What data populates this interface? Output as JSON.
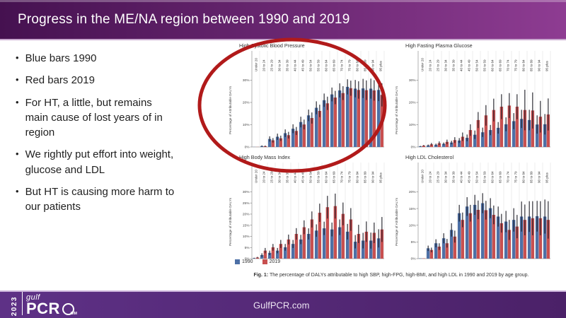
{
  "slide": {
    "title": "Progress in the ME/NA region between 1990 and 2019",
    "bullets": [
      "Blue bars 1990",
      "Red bars 2019",
      "For HT, a little, but remains main cause of lost years of in region",
      "We rightly put effort into weight, glucose and LDL",
      "But HT is causing more harm to our patients"
    ],
    "footer": {
      "url_text": "GulfPCR.com",
      "logo": {
        "year": "2023",
        "brand_top": "gulf",
        "brand_main": "PCR",
        "brand_sub": "GIM"
      }
    },
    "colors": {
      "header_grad_start": "#451150",
      "header_grad_end": "#8e3c92",
      "header_bottom_line": "#c9a8cf",
      "footer_grad_start": "#5e3186",
      "footer_grad_end": "#4b2168",
      "footer_top_line": "#cdb5dc",
      "bar_blue": "#4d70a6",
      "bar_red": "#c85050",
      "error_bar": "#1b1b24",
      "annotation_red": "#b11a1a"
    }
  },
  "figure": {
    "legend": [
      {
        "label": "1990",
        "color": "#4d70a6"
      },
      {
        "label": "2019",
        "color": "#c85050"
      }
    ],
    "caption_prefix": "Fig. 1:",
    "caption_text": "The percentage of DALYs attributable to high SBP, high-FPG, high-BMI, and high LDL in 1990 and 2019 by age group."
  },
  "chart_data": [
    {
      "id": "high_systolic_blood_pressure",
      "type": "bar",
      "title": "High Systolic Blood Pressure",
      "ylabel": "Percentage of Attributable DALYs",
      "ylim": [
        0,
        33
      ],
      "yticks": [
        0,
        10,
        20,
        30
      ],
      "grid": "vertical",
      "categories": [
        "Under 20",
        "20 to 24",
        "25 to 29",
        "30 to 34",
        "35 to 39",
        "40 to 44",
        "45 to 49",
        "50 to 54",
        "55 to 59",
        "60 to 64",
        "65 to 69",
        "70 to 74",
        "75 to 79",
        "80 to 84",
        "85 to 89",
        "90 to 94",
        "95 plus"
      ],
      "series": [
        {
          "name": "1990",
          "values": [
            0.05,
            0.4,
            3.6,
            4.6,
            6.2,
            8.2,
            11.2,
            14.2,
            17.6,
            21.0,
            23.6,
            25.4,
            27.0,
            26.2,
            26.3,
            26.2,
            25.6
          ],
          "err": [
            0.05,
            0.3,
            1.2,
            1.4,
            1.7,
            2.0,
            2.4,
            2.6,
            2.9,
            3.0,
            3.1,
            3.2,
            3.4,
            3.9,
            4.3,
            4.5,
            5.0
          ]
        },
        {
          "name": "2019",
          "values": [
            0.05,
            0.35,
            3.0,
            3.9,
            5.3,
            7.2,
            10.1,
            13.0,
            16.2,
            19.6,
            22.2,
            24.2,
            26.4,
            25.6,
            25.5,
            25.4,
            23.4
          ],
          "err": [
            0.05,
            0.3,
            1.0,
            1.2,
            1.5,
            1.8,
            2.2,
            2.5,
            2.8,
            3.0,
            3.0,
            3.1,
            3.4,
            3.9,
            4.4,
            4.6,
            5.2
          ]
        }
      ]
    },
    {
      "id": "high_fasting_plasma_glucose",
      "type": "bar",
      "title": "High Fasting Plasma Glucose",
      "ylabel": "Percentage of Attributable DALYs",
      "ylim": [
        0,
        33
      ],
      "yticks": [
        0,
        10,
        20,
        30
      ],
      "grid": "vertical",
      "categories": [
        "Under 20",
        "20 to 24",
        "25 to 29",
        "30 to 34",
        "35 to 39",
        "40 to 44",
        "45 to 49",
        "50 to 54",
        "55 to 59",
        "60 to 64",
        "65 to 69",
        "70 to 74",
        "75 to 79",
        "80 to 84",
        "85 to 89",
        "90 to 94",
        "95 plus"
      ],
      "series": [
        {
          "name": "1990",
          "values": [
            0.3,
            0.7,
            1.0,
            1.4,
            2.0,
            2.9,
            4.1,
            5.5,
            6.6,
            7.6,
            8.6,
            10.2,
            11.6,
            12.6,
            12.1,
            10.1,
            10.2
          ],
          "err": [
            0.2,
            0.4,
            0.5,
            0.6,
            0.8,
            1.1,
            1.5,
            1.9,
            2.1,
            2.3,
            2.6,
            3.1,
            3.6,
            4.1,
            4.6,
            4.1,
            4.6
          ]
        },
        {
          "name": "2019",
          "values": [
            0.6,
            1.2,
            1.7,
            2.3,
            3.1,
            4.6,
            7.6,
            12.1,
            14.2,
            16.6,
            18.1,
            18.6,
            18.1,
            16.6,
            16.4,
            13.6,
            14.6
          ],
          "err": [
            0.3,
            0.6,
            0.8,
            1.0,
            1.3,
            1.9,
            2.6,
            3.6,
            4.6,
            5.1,
            5.6,
            5.6,
            5.6,
            9.1,
            8.1,
            7.1,
            7.2
          ]
        }
      ]
    },
    {
      "id": "high_body_mass_index",
      "type": "bar",
      "title": "High Body Mass Index",
      "ylabel": "Percentage of Attributable DALYs",
      "ylim": [
        0,
        33
      ],
      "yticks": [
        0,
        5,
        10,
        15,
        20,
        25,
        30
      ],
      "grid": "vertical",
      "categories": [
        "Under 20",
        "20 to 24",
        "25 to 29",
        "30 to 34",
        "35 to 39",
        "40 to 44",
        "45 to 49",
        "50 to 54",
        "55 to 59",
        "60 to 64",
        "65 to 69",
        "70 to 74",
        "75 to 79",
        "80 to 84",
        "85 to 89",
        "90 to 94",
        "95 plus"
      ],
      "series": [
        {
          "name": "1990",
          "values": [
            0.2,
            1.6,
            2.6,
            3.6,
            5.1,
            6.6,
            8.6,
            11.1,
            12.6,
            13.6,
            13.1,
            14.1,
            12.1,
            7.6,
            8.1,
            8.1,
            9.1
          ],
          "err": [
            0.2,
            0.8,
            1.0,
            1.2,
            1.5,
            1.8,
            2.1,
            2.5,
            2.8,
            3.0,
            3.1,
            3.5,
            3.5,
            3.0,
            3.5,
            3.6,
            4.1
          ]
        },
        {
          "name": "2019",
          "values": [
            0.5,
            3.6,
            5.1,
            6.6,
            8.6,
            11.1,
            14.1,
            17.6,
            20.6,
            23.1,
            23.6,
            20.1,
            17.6,
            11.1,
            12.1,
            11.6,
            13.1
          ],
          "err": [
            0.3,
            1.2,
            1.5,
            1.8,
            2.2,
            2.6,
            3.1,
            3.6,
            4.1,
            5.1,
            5.6,
            5.1,
            5.1,
            4.1,
            4.6,
            4.6,
            5.6
          ]
        }
      ]
    },
    {
      "id": "high_ldl_cholesterol",
      "type": "bar",
      "title": "High LDL Cholesterol",
      "ylabel": "Percentage of Attributable DALYs",
      "ylim": [
        0,
        22
      ],
      "yticks": [
        0,
        5,
        10,
        15,
        20
      ],
      "grid": "vertical",
      "categories": [
        "Under 20",
        "20 to 24",
        "25 to 29",
        "30 to 34",
        "35 to 39",
        "40 to 44",
        "45 to 49",
        "50 to 54",
        "55 to 59",
        "60 to 64",
        "65 to 69",
        "70 to 74",
        "75 to 79",
        "80 to 84",
        "85 to 89",
        "90 to 94",
        "95 plus"
      ],
      "series": [
        {
          "name": "1990",
          "values": [
            0.1,
            3.1,
            4.6,
            6.1,
            8.6,
            13.6,
            15.6,
            16.1,
            16.6,
            15.1,
            12.6,
            11.1,
            11.6,
            12.6,
            12.6,
            12.7,
            12.6
          ],
          "err": [
            0.1,
            0.8,
            1.2,
            1.5,
            2.0,
            2.5,
            2.8,
            3.0,
            3.0,
            3.0,
            3.0,
            3.2,
            3.5,
            4.5,
            4.6,
            4.6,
            5.1
          ]
        },
        {
          "name": "2019",
          "values": [
            0.1,
            2.6,
            3.6,
            4.6,
            6.6,
            11.6,
            13.6,
            14.6,
            14.5,
            13.1,
            10.6,
            8.6,
            9.6,
            11.6,
            12.1,
            12.1,
            11.6
          ],
          "err": [
            0.1,
            0.7,
            1.0,
            1.3,
            1.8,
            2.2,
            2.5,
            2.8,
            2.8,
            2.8,
            2.8,
            3.0,
            3.5,
            4.6,
            5.1,
            5.1,
            5.6
          ]
        }
      ]
    }
  ]
}
